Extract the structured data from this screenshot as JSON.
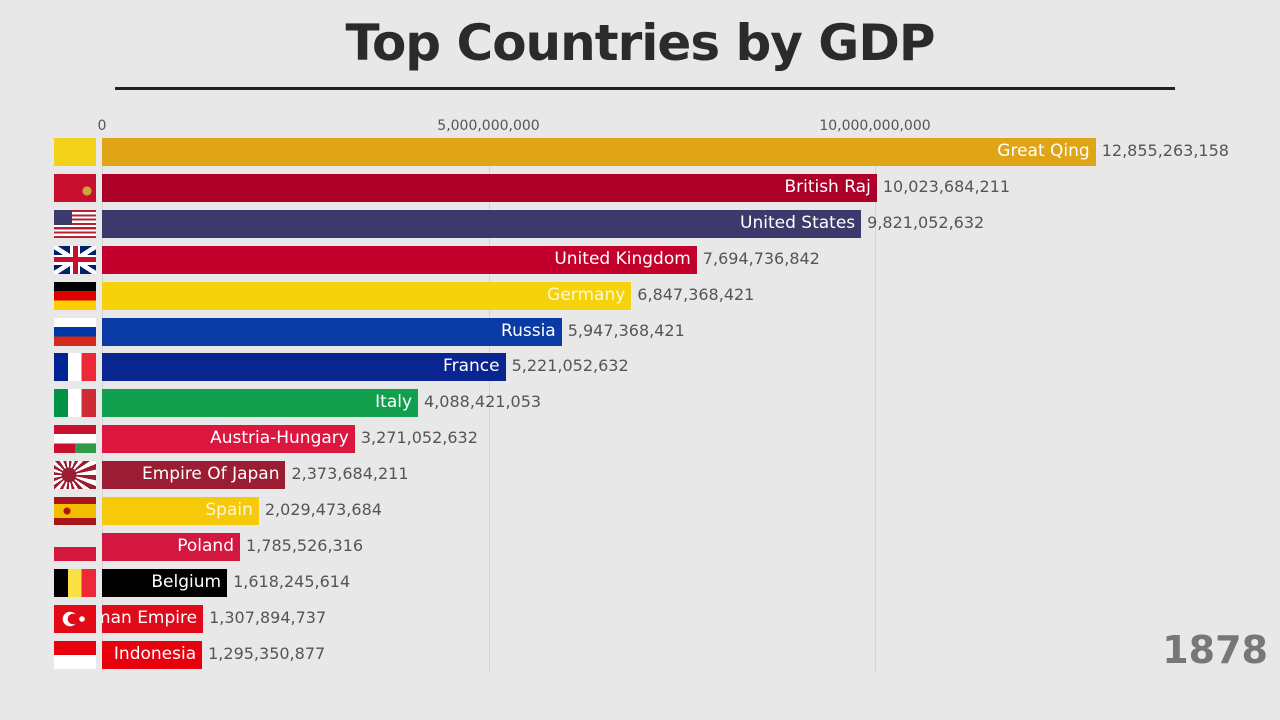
{
  "chart_data": {
    "type": "bar",
    "orientation": "horizontal",
    "title": "Top Countries by GDP",
    "year": "1878",
    "xlim": [
      0,
      13000000000
    ],
    "xticks": [
      0,
      5000000000,
      10000000000
    ],
    "xtick_labels": [
      "0",
      "5,000,000,000",
      "10,000,000,000"
    ],
    "grid": true,
    "categories": [
      "Great Qing",
      "British Raj",
      "United States",
      "United Kingdom",
      "Germany",
      "Russia",
      "France",
      "Italy",
      "Austria-Hungary",
      "Empire Of Japan",
      "Spain",
      "Poland",
      "Belgium",
      "Ottoman Empire",
      "Indonesia"
    ],
    "values": [
      12855263158,
      10023684211,
      9821052632,
      7694736842,
      6847368421,
      5947368421,
      5221052632,
      4088421053,
      3271052632,
      2373684211,
      2029473684,
      1785526316,
      1618245614,
      1307894737,
      1295350877
    ],
    "value_labels": [
      "12,855,263,158",
      "10,023,684,211",
      "9,821,052,632",
      "7,694,736,842",
      "6,847,368,421",
      "5,947,368,421",
      "5,221,052,632",
      "4,088,421,053",
      "3,271,052,632",
      "2,373,684,211",
      "2,029,473,684",
      "1,785,526,316",
      "1,618,245,614",
      "1,307,894,737",
      "1,295,350,877"
    ],
    "colors": [
      "#e0a516",
      "#ad0028",
      "#3d3a6b",
      "#c3002b",
      "#f6d20c",
      "#0a3aa6",
      "#0a2590",
      "#12a04e",
      "#dc173f",
      "#9b1d33",
      "#f7ca09",
      "#d3173f",
      "#000000",
      "#e00a1a",
      "#e8000f"
    ],
    "label_colors": [
      "#ffffff",
      "#ffffff",
      "#ffffff",
      "#ffffff",
      "#fff7d6",
      "#ffffff",
      "#ffffff",
      "#ffffff",
      "#ffffff",
      "#ffffff",
      "#fff7d6",
      "#ffffff",
      "#ffffff",
      "#ffffff",
      "#ffffff"
    ],
    "flag_icons": [
      "qing-flag-icon",
      "british-raj-flag-icon",
      "us-flag-icon",
      "uk-flag-icon",
      "germany-flag-icon",
      "russia-flag-icon",
      "france-flag-icon",
      "italy-flag-icon",
      "austria-hungary-flag-icon",
      "japan-rising-sun-flag-icon",
      "spain-flag-icon",
      "poland-flag-icon",
      "belgium-flag-icon",
      "ottoman-flag-icon",
      "indonesia-flag-icon"
    ]
  }
}
